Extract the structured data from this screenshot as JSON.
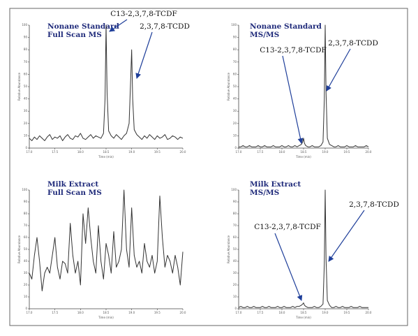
{
  "chart_data": [
    {
      "type": "line",
      "title": "Nonane Standard",
      "subtitle": "Full Scan MS",
      "xlabel": "Time (min)",
      "ylabel": "Relative Abundance",
      "color": "#333333",
      "annotations": [
        "C13-2,3,7,8-TCDF",
        "2,3,7,8-TCDD"
      ],
      "xlim": [
        17,
        20
      ],
      "ylim": [
        0,
        100
      ],
      "xticks": [
        {
          "value": 17,
          "label": "17.0"
        },
        {
          "value": 17.5,
          "label": "17.5"
        },
        {
          "value": 18,
          "label": "18.0"
        },
        {
          "value": 18.5,
          "label": "18.5"
        },
        {
          "value": 19,
          "label": "19.0"
        },
        {
          "value": 19.5,
          "label": "19.5"
        },
        {
          "value": 20,
          "label": "20.0"
        }
      ],
      "yticks": [
        0,
        10,
        20,
        30,
        40,
        50,
        60,
        70,
        80,
        90,
        100
      ],
      "x": [
        17.0,
        17.05,
        17.1,
        17.15,
        17.2,
        17.25,
        17.3,
        17.35,
        17.4,
        17.45,
        17.5,
        17.55,
        17.6,
        17.65,
        17.7,
        17.75,
        17.8,
        17.85,
        17.9,
        17.95,
        18.0,
        18.05,
        18.1,
        18.15,
        18.2,
        18.25,
        18.3,
        18.35,
        18.4,
        18.45,
        18.48,
        18.5,
        18.52,
        18.55,
        18.6,
        18.65,
        18.7,
        18.75,
        18.8,
        18.85,
        18.9,
        18.95,
        18.98,
        19.0,
        19.02,
        19.05,
        19.1,
        19.15,
        19.2,
        19.25,
        19.3,
        19.35,
        19.4,
        19.45,
        19.5,
        19.55,
        19.6,
        19.65,
        19.7,
        19.75,
        19.8,
        19.85,
        19.9,
        19.95,
        20.0
      ],
      "values": [
        8,
        6,
        9,
        7,
        10,
        8,
        6,
        9,
        11,
        7,
        9,
        8,
        10,
        6,
        9,
        11,
        8,
        7,
        10,
        9,
        12,
        8,
        7,
        9,
        11,
        8,
        10,
        9,
        8,
        12,
        40,
        100,
        45,
        14,
        10,
        8,
        11,
        9,
        7,
        10,
        12,
        20,
        55,
        80,
        40,
        15,
        11,
        9,
        7,
        10,
        8,
        11,
        9,
        7,
        10,
        8,
        9,
        11,
        7,
        8,
        10,
        9,
        7,
        9,
        8
      ]
    },
    {
      "type": "line",
      "title": "Nonane Standard",
      "subtitle": "MS/MS",
      "xlabel": "Time (min)",
      "ylabel": "Relative Abundance",
      "color": "#333333",
      "annotations": [
        "C13-2,3,7,8-TCDF",
        "2,3,7,8-TCDD"
      ],
      "xlim": [
        17,
        20
      ],
      "ylim": [
        0,
        100
      ],
      "xticks": [
        {
          "value": 17,
          "label": "17.0"
        },
        {
          "value": 17.5,
          "label": "17.5"
        },
        {
          "value": 18,
          "label": "18.0"
        },
        {
          "value": 18.5,
          "label": "18.5"
        },
        {
          "value": 19,
          "label": "19.0"
        },
        {
          "value": 19.5,
          "label": "19.5"
        },
        {
          "value": 20,
          "label": "20.0"
        }
      ],
      "yticks": [
        0,
        10,
        20,
        30,
        40,
        50,
        60,
        70,
        80,
        90,
        100
      ],
      "x": [
        17.0,
        17.05,
        17.1,
        17.15,
        17.2,
        17.25,
        17.3,
        17.35,
        17.4,
        17.45,
        17.5,
        17.55,
        17.6,
        17.65,
        17.7,
        17.75,
        17.8,
        17.85,
        17.9,
        17.95,
        18.0,
        18.05,
        18.1,
        18.15,
        18.2,
        18.25,
        18.3,
        18.35,
        18.4,
        18.45,
        18.48,
        18.5,
        18.52,
        18.55,
        18.6,
        18.65,
        18.7,
        18.75,
        18.8,
        18.85,
        18.9,
        18.95,
        18.98,
        19.0,
        19.02,
        19.05,
        19.1,
        19.15,
        19.2,
        19.25,
        19.3,
        19.35,
        19.4,
        19.45,
        19.5,
        19.55,
        19.6,
        19.65,
        19.7,
        19.75,
        19.8,
        19.85,
        19.9,
        19.95,
        20.0
      ],
      "values": [
        1,
        1,
        2,
        1,
        1,
        2,
        1,
        1,
        1,
        2,
        1,
        1,
        2,
        1,
        1,
        1,
        2,
        1,
        1,
        1,
        2,
        1,
        1,
        2,
        1,
        1,
        2,
        1,
        2,
        3,
        5,
        8,
        4,
        2,
        1,
        1,
        2,
        1,
        1,
        1,
        2,
        5,
        40,
        100,
        45,
        8,
        3,
        2,
        1,
        1,
        2,
        1,
        1,
        1,
        2,
        1,
        1,
        1,
        2,
        1,
        1,
        1,
        1,
        2,
        1
      ]
    },
    {
      "type": "line",
      "title": "Milk Extract",
      "subtitle": "Full Scan MS",
      "xlabel": "Time (min)",
      "ylabel": "Relative Abundance",
      "color": "#333333",
      "xlim": [
        17,
        20
      ],
      "ylim": [
        0,
        100
      ],
      "xticks": [
        {
          "value": 17,
          "label": "17.0"
        },
        {
          "value": 17.5,
          "label": "17.5"
        },
        {
          "value": 18,
          "label": "18.0"
        },
        {
          "value": 18.5,
          "label": "18.5"
        },
        {
          "value": 19,
          "label": "19.0"
        },
        {
          "value": 19.5,
          "label": "19.5"
        },
        {
          "value": 20,
          "label": "20.0"
        }
      ],
      "yticks": [
        0,
        10,
        20,
        30,
        40,
        50,
        60,
        70,
        80,
        90,
        100
      ],
      "x": [
        17.0,
        17.05,
        17.1,
        17.15,
        17.2,
        17.25,
        17.3,
        17.35,
        17.4,
        17.45,
        17.5,
        17.55,
        17.6,
        17.65,
        17.7,
        17.75,
        17.8,
        17.85,
        17.9,
        17.95,
        18.0,
        18.05,
        18.1,
        18.15,
        18.2,
        18.25,
        18.3,
        18.35,
        18.4,
        18.45,
        18.5,
        18.55,
        18.6,
        18.65,
        18.7,
        18.75,
        18.8,
        18.85,
        18.9,
        18.95,
        19.0,
        19.05,
        19.1,
        19.15,
        19.2,
        19.25,
        19.3,
        19.35,
        19.4,
        19.45,
        19.5,
        19.55,
        19.6,
        19.65,
        19.7,
        19.75,
        19.8,
        19.85,
        19.9,
        19.95,
        20.0
      ],
      "values": [
        30,
        25,
        45,
        60,
        40,
        15,
        30,
        35,
        30,
        45,
        60,
        35,
        25,
        40,
        38,
        30,
        72,
        45,
        30,
        40,
        20,
        80,
        55,
        85,
        60,
        40,
        30,
        70,
        40,
        25,
        55,
        45,
        30,
        65,
        35,
        40,
        50,
        100,
        50,
        35,
        85,
        45,
        35,
        40,
        30,
        55,
        40,
        35,
        45,
        30,
        40,
        95,
        60,
        35,
        45,
        40,
        30,
        45,
        35,
        20,
        48
      ]
    },
    {
      "type": "line",
      "title": "Milk Extract",
      "subtitle": "MS/MS",
      "xlabel": "Time (min)",
      "ylabel": "Relative Abundance",
      "color": "#333333",
      "annotations": [
        "C13-2,3,7,8-TCDF",
        "2,3,7,8-TCDD"
      ],
      "xlim": [
        17,
        20
      ],
      "ylim": [
        0,
        100
      ],
      "xticks": [
        {
          "value": 17,
          "label": "17.0"
        },
        {
          "value": 17.5,
          "label": "17.5"
        },
        {
          "value": 18,
          "label": "18.0"
        },
        {
          "value": 18.5,
          "label": "18.5"
        },
        {
          "value": 19,
          "label": "19.0"
        },
        {
          "value": 19.5,
          "label": "19.5"
        },
        {
          "value": 20,
          "label": "20.0"
        }
      ],
      "yticks": [
        0,
        10,
        20,
        30,
        40,
        50,
        60,
        70,
        80,
        90,
        100
      ],
      "x": [
        17.0,
        17.05,
        17.1,
        17.15,
        17.2,
        17.25,
        17.3,
        17.35,
        17.4,
        17.45,
        17.5,
        17.55,
        17.6,
        17.65,
        17.7,
        17.75,
        17.8,
        17.85,
        17.9,
        17.95,
        18.0,
        18.05,
        18.1,
        18.15,
        18.2,
        18.25,
        18.3,
        18.35,
        18.4,
        18.45,
        18.48,
        18.5,
        18.52,
        18.55,
        18.6,
        18.65,
        18.7,
        18.75,
        18.8,
        18.85,
        18.9,
        18.95,
        18.98,
        19.0,
        19.02,
        19.05,
        19.1,
        19.15,
        19.2,
        19.25,
        19.3,
        19.35,
        19.4,
        19.45,
        19.5,
        19.55,
        19.6,
        19.65,
        19.7,
        19.75,
        19.8,
        19.85,
        19.9,
        19.95,
        20.0
      ],
      "values": [
        1,
        2,
        1,
        1,
        2,
        1,
        1,
        2,
        1,
        1,
        1,
        2,
        1,
        1,
        2,
        1,
        1,
        1,
        2,
        1,
        1,
        2,
        1,
        1,
        1,
        2,
        1,
        2,
        2,
        3,
        4,
        5,
        3,
        2,
        1,
        1,
        1,
        2,
        1,
        1,
        2,
        4,
        38,
        100,
        42,
        7,
        3,
        1,
        1,
        2,
        1,
        1,
        2,
        1,
        1,
        1,
        2,
        1,
        1,
        1,
        2,
        1,
        1,
        1,
        1
      ]
    }
  ]
}
